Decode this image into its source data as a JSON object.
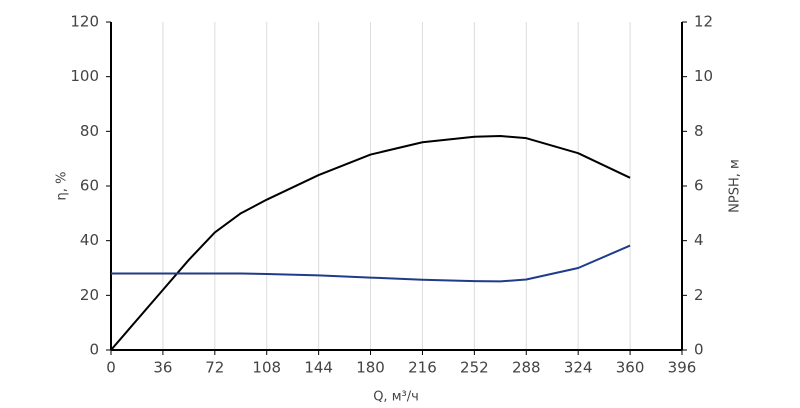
{
  "chart_data": {
    "type": "line",
    "x_label": "Q, м³/ч",
    "y_label": "η, %",
    "y2_label": "NPSH, м",
    "x": [
      0,
      36,
      54,
      72,
      90,
      108,
      144,
      180,
      216,
      252,
      270,
      288,
      324,
      360
    ],
    "series": [
      {
        "color": "#000000",
        "values": [
          0,
          22,
          33,
          43,
          50,
          55,
          64,
          71.5,
          76,
          78,
          78.3,
          77.5,
          72,
          63
        ]
      },
      {
        "color": "#1f3b8a",
        "axis": "y2",
        "values": [
          2.8,
          2.8,
          2.8,
          2.8,
          2.8,
          2.78,
          2.73,
          2.65,
          2.57,
          2.52,
          2.51,
          2.58,
          3.0,
          3.82
        ]
      }
    ],
    "xlim": [
      0,
      396
    ],
    "xticks": [
      0,
      36,
      72,
      108,
      144,
      180,
      216,
      252,
      288,
      324,
      360,
      396
    ],
    "ylim": [
      0,
      120
    ],
    "yticks": [
      0,
      20,
      40,
      60,
      80,
      100,
      120
    ],
    "y2lim": [
      0,
      12
    ],
    "y2ticks": [
      0,
      2,
      4,
      6,
      8,
      10,
      12
    ],
    "grid": true
  }
}
